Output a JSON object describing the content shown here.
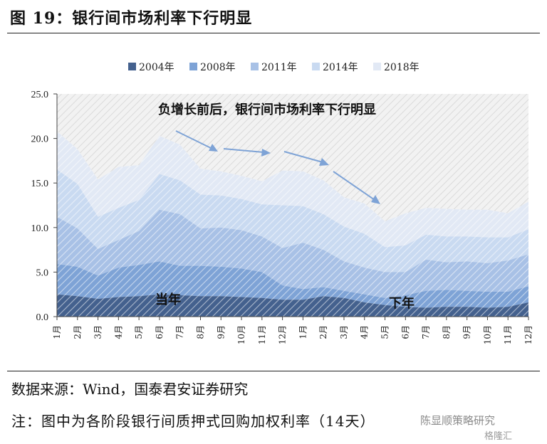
{
  "title": "图 19：银行间市场利率下行明显",
  "source": "数据来源：Wind，国泰君安证券研究",
  "note": "注：图中为各阶段银行间质押式回购加权利率（14天）",
  "watermark": "陈显顺策略研究",
  "watermark2": "格隆汇",
  "chart_data": {
    "type": "area",
    "stacked": true,
    "ylim": [
      0,
      25
    ],
    "yticks": [
      "0.0",
      "5.0",
      "10.0",
      "15.0",
      "20.0",
      "25.0"
    ],
    "x": [
      "1月",
      "2月",
      "3月",
      "4月",
      "5月",
      "6月",
      "7月",
      "8月",
      "9月",
      "10月",
      "11月",
      "12月",
      "1月",
      "2月",
      "3月",
      "4月",
      "5月",
      "6月",
      "7月",
      "8月",
      "9月",
      "10月",
      "11月",
      "12月"
    ],
    "series": [
      {
        "name": "2004年",
        "color": "#44618e",
        "values": [
          2.5,
          2.3,
          2.0,
          2.2,
          2.3,
          2.5,
          2.4,
          2.3,
          2.3,
          2.2,
          2.1,
          1.9,
          1.9,
          2.3,
          2.1,
          1.6,
          1.3,
          1.1,
          1.0,
          1.1,
          1.1,
          1.0,
          1.1,
          1.6
        ]
      },
      {
        "name": "2008年",
        "color": "#7ea3d6",
        "values": [
          3.4,
          3.3,
          2.6,
          3.3,
          3.5,
          3.7,
          3.3,
          3.4,
          3.3,
          3.2,
          2.9,
          1.6,
          1.2,
          1.0,
          0.8,
          0.9,
          0.8,
          1.3,
          1.9,
          1.9,
          1.8,
          1.8,
          1.7,
          1.8
        ]
      },
      {
        "name": "2011年",
        "color": "#a8c1e6",
        "values": [
          5.3,
          4.3,
          3.0,
          3.1,
          3.8,
          5.8,
          5.8,
          4.2,
          4.4,
          4.3,
          4.0,
          4.2,
          5.2,
          4.2,
          3.3,
          3.0,
          2.9,
          2.6,
          3.5,
          3.1,
          3.3,
          3.2,
          3.5,
          3.6
        ]
      },
      {
        "name": "2014年",
        "color": "#c9daf1",
        "values": [
          5.3,
          5.0,
          3.6,
          3.6,
          3.5,
          4.0,
          3.8,
          3.8,
          3.6,
          3.5,
          3.6,
          4.8,
          4.1,
          4.0,
          3.9,
          3.8,
          2.8,
          3.0,
          2.8,
          2.9,
          2.8,
          2.9,
          2.6,
          2.8
        ]
      },
      {
        "name": "2018年",
        "color": "#e2e9f5",
        "values": [
          4.3,
          3.9,
          4.2,
          4.6,
          3.9,
          4.3,
          4.0,
          2.9,
          2.7,
          2.6,
          2.6,
          3.9,
          3.9,
          3.8,
          3.3,
          3.4,
          2.9,
          3.6,
          3.0,
          3.1,
          3.0,
          3.1,
          2.7,
          3.1
        ]
      }
    ],
    "annotations": {
      "headline": "负增长前后，银行间市场利率下行明显",
      "left_label": "当年",
      "right_label": "下年"
    },
    "legend": "top-center"
  }
}
